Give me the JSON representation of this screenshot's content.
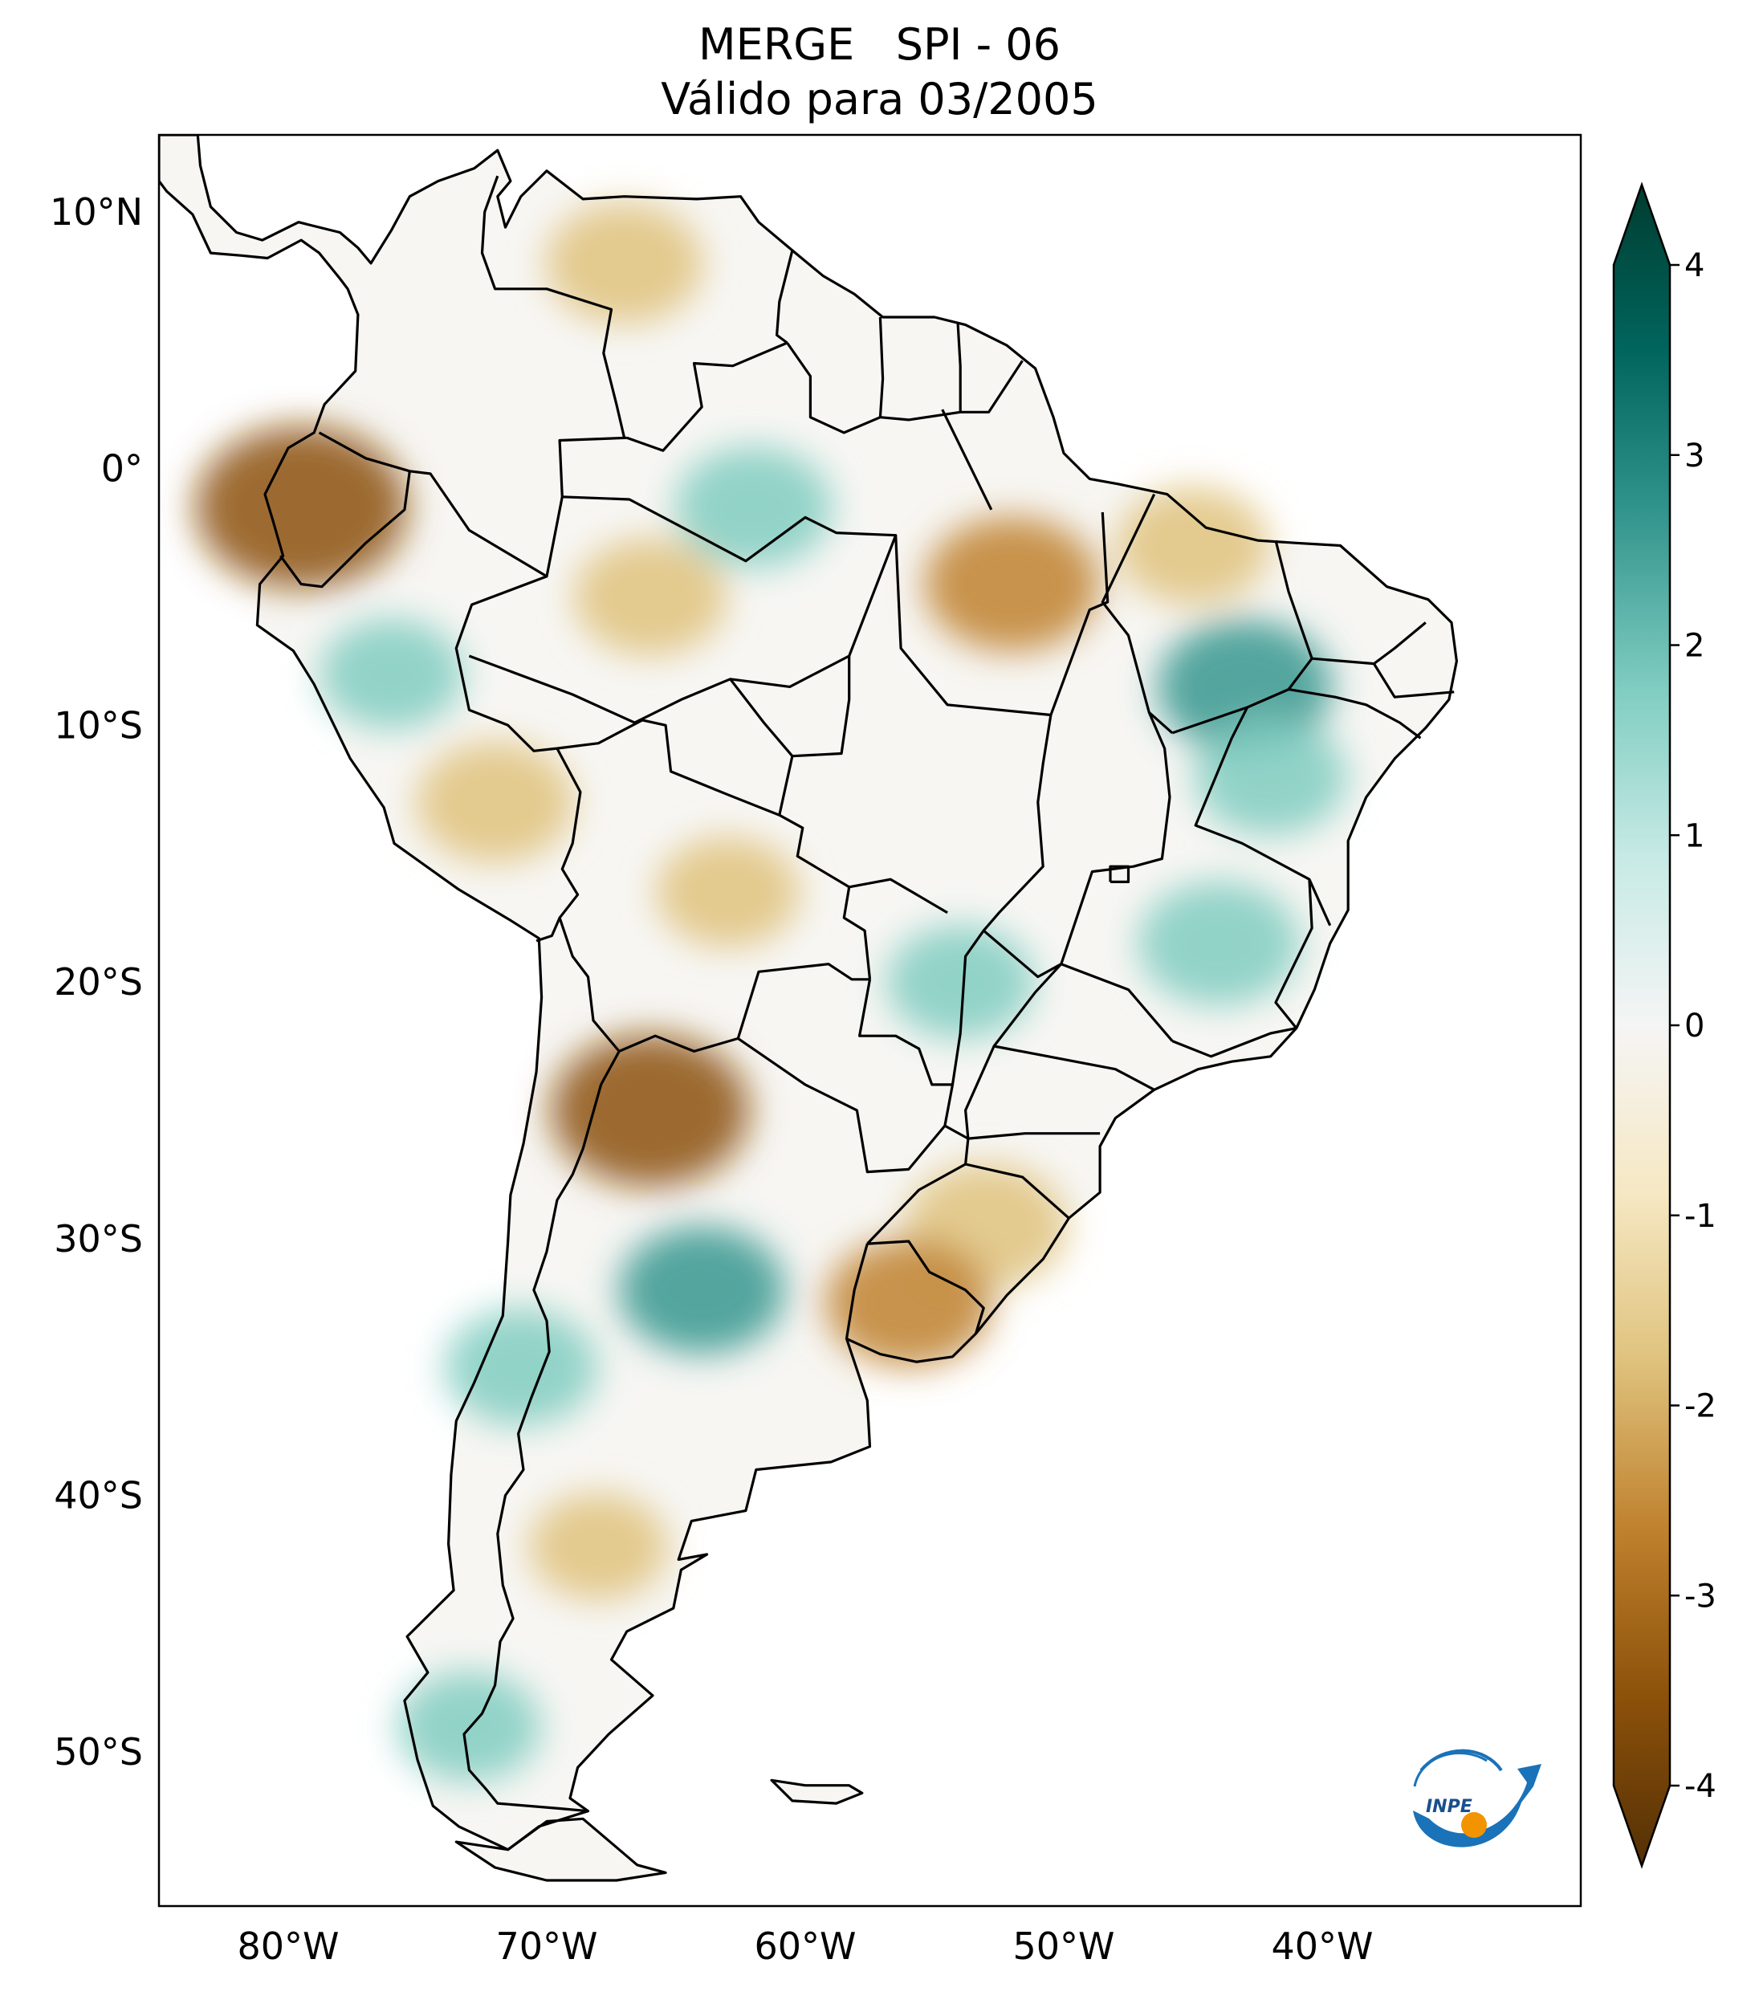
{
  "title": {
    "line1": "MERGE   SPI - 06",
    "line2": "Válido para 03/2005"
  },
  "map": {
    "projection": "plate-carree",
    "lon_range": [
      -85,
      -30
    ],
    "lat_range": [
      -56,
      13
    ],
    "lat_ticks": [
      {
        "value": 10,
        "label": "10°N"
      },
      {
        "value": 0,
        "label": "0°"
      },
      {
        "value": -10,
        "label": "10°S"
      },
      {
        "value": -20,
        "label": "20°S"
      },
      {
        "value": -30,
        "label": "30°S"
      },
      {
        "value": -40,
        "label": "40°S"
      },
      {
        "value": -50,
        "label": "50°S"
      }
    ],
    "lon_ticks": [
      {
        "value": -80,
        "label": "80°W"
      },
      {
        "value": -70,
        "label": "70°W"
      },
      {
        "value": -60,
        "label": "60°W"
      },
      {
        "value": -50,
        "label": "50°W"
      },
      {
        "value": -40,
        "label": "40°W"
      }
    ],
    "dry_anomalies": [
      {
        "region": "northern Venezuela",
        "lon": -67,
        "lat": 8,
        "spi": -1.6
      },
      {
        "region": "coastal Ecuador",
        "lon": -79.5,
        "lat": -1.5,
        "spi": -2.8
      },
      {
        "region": "western Amazonas",
        "lon": -66,
        "lat": -5,
        "spi": -1.5
      },
      {
        "region": "central Pará",
        "lon": -52,
        "lat": -4.5,
        "spi": -2.0
      },
      {
        "region": "northern Maranhão",
        "lon": -45,
        "lat": -3,
        "spi": -1.5
      },
      {
        "region": "southern Peru",
        "lon": -72,
        "lat": -13,
        "spi": -1.6
      },
      {
        "region": "eastern Bolivia",
        "lon": -63,
        "lat": -16.5,
        "spi": -1.3
      },
      {
        "region": "northwest Argentina",
        "lon": -66,
        "lat": -25,
        "spi": -2.5
      },
      {
        "region": "Rio Grande do Sul",
        "lon": -53,
        "lat": -29.5,
        "spi": -1.7
      },
      {
        "region": "Uruguay",
        "lon": -56,
        "lat": -32.5,
        "spi": -1.8
      },
      {
        "region": "Patagonia",
        "lon": -68,
        "lat": -42,
        "spi": -1.2
      }
    ],
    "wet_anomalies": [
      {
        "region": "central Amazonas",
        "lon": -62,
        "lat": -1.5,
        "spi": 1.6
      },
      {
        "region": "western Amazonas",
        "lon": -76,
        "lat": -8,
        "spi": 1.3
      },
      {
        "region": "Piauí",
        "lon": -43,
        "lat": -8.5,
        "spi": 2.0
      },
      {
        "region": "Bahia",
        "lon": -42,
        "lat": -12,
        "spi": 1.5
      },
      {
        "region": "Minas Gerais",
        "lon": -44,
        "lat": -18.5,
        "spi": 1.7
      },
      {
        "region": "Mato Grosso do Sul",
        "lon": -54,
        "lat": -20,
        "spi": 1.4
      },
      {
        "region": "central Argentina",
        "lon": -64,
        "lat": -32,
        "spi": 1.8
      },
      {
        "region": "central Chile",
        "lon": -71,
        "lat": -35,
        "spi": 1.5
      },
      {
        "region": "southern Chile",
        "lon": -73,
        "lat": -49,
        "spi": 1.3
      }
    ]
  },
  "colorbar": {
    "colormap": "BrBG",
    "range": [
      -4,
      4
    ],
    "ticks": [
      {
        "value": 4,
        "label": "4"
      },
      {
        "value": 3,
        "label": "3"
      },
      {
        "value": 2,
        "label": "2"
      },
      {
        "value": 1,
        "label": "1"
      },
      {
        "value": 0,
        "label": "0"
      },
      {
        "value": -1,
        "label": "-1"
      },
      {
        "value": -2,
        "label": "-2"
      },
      {
        "value": -3,
        "label": "-3"
      },
      {
        "value": -4,
        "label": "-4"
      }
    ],
    "colors": {
      "dry_extreme": "#543005",
      "dry_strong": "#8c510a",
      "dry_moderate": "#bf812d",
      "dry_light": "#dfc27d",
      "dry_slight": "#f6e8c3",
      "neutral": "#f5f5f5",
      "wet_slight": "#c7eae5",
      "wet_light": "#80cdc1",
      "wet_moderate": "#35978f",
      "wet_strong": "#01665e",
      "wet_extreme": "#003c30"
    }
  },
  "logo": {
    "text": "INPE",
    "icon": "inpe-logo-icon"
  }
}
